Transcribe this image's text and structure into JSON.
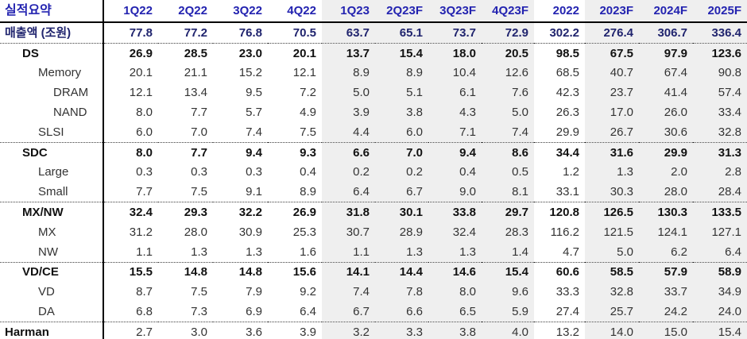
{
  "table": {
    "corner_label": "실적요약",
    "colors": {
      "header_text": "#2323b0",
      "revenue_text": "#20246e",
      "body_text": "#333333",
      "shade_bg": "#efefef",
      "line": "#000000"
    },
    "columns": [
      "1Q22",
      "2Q22",
      "3Q22",
      "4Q22",
      "1Q23",
      "2Q23F",
      "3Q23F",
      "4Q23F",
      "2022",
      "2023F",
      "2024F",
      "2025F"
    ],
    "shaded_column_indexes": [
      4,
      5,
      6,
      7,
      9,
      10,
      11
    ],
    "rows": [
      {
        "label": "매출액 (조원)",
        "indent": 0,
        "bold": true,
        "navy": true,
        "sep_after": true,
        "values": [
          "77.8",
          "77.2",
          "76.8",
          "70.5",
          "63.7",
          "65.1",
          "73.7",
          "72.9",
          "302.2",
          "276.4",
          "306.7",
          "336.4"
        ]
      },
      {
        "label": "DS",
        "indent": 1,
        "bold": true,
        "values": [
          "26.9",
          "28.5",
          "23.0",
          "20.1",
          "13.7",
          "15.4",
          "18.0",
          "20.5",
          "98.5",
          "67.5",
          "97.9",
          "123.6"
        ]
      },
      {
        "label": "Memory",
        "indent": 2,
        "values": [
          "20.1",
          "21.1",
          "15.2",
          "12.1",
          "8.9",
          "8.9",
          "10.4",
          "12.6",
          "68.5",
          "40.7",
          "67.4",
          "90.8"
        ]
      },
      {
        "label": "DRAM",
        "indent": 3,
        "values": [
          "12.1",
          "13.4",
          "9.5",
          "7.2",
          "5.0",
          "5.1",
          "6.1",
          "7.6",
          "42.3",
          "23.7",
          "41.4",
          "57.4"
        ]
      },
      {
        "label": "NAND",
        "indent": 3,
        "values": [
          "8.0",
          "7.7",
          "5.7",
          "4.9",
          "3.9",
          "3.8",
          "4.3",
          "5.0",
          "26.3",
          "17.0",
          "26.0",
          "33.4"
        ]
      },
      {
        "label": "SLSI",
        "indent": 2,
        "sep_after": true,
        "values": [
          "6.0",
          "7.0",
          "7.4",
          "7.5",
          "4.4",
          "6.0",
          "7.1",
          "7.4",
          "29.9",
          "26.7",
          "30.6",
          "32.8"
        ]
      },
      {
        "label": "SDC",
        "indent": 1,
        "bold": true,
        "values": [
          "8.0",
          "7.7",
          "9.4",
          "9.3",
          "6.6",
          "7.0",
          "9.4",
          "8.6",
          "34.4",
          "31.6",
          "29.9",
          "31.3"
        ]
      },
      {
        "label": "Large",
        "indent": 2,
        "values": [
          "0.3",
          "0.3",
          "0.3",
          "0.4",
          "0.2",
          "0.2",
          "0.4",
          "0.5",
          "1.2",
          "1.3",
          "2.0",
          "2.8"
        ]
      },
      {
        "label": "Small",
        "indent": 2,
        "sep_after": true,
        "values": [
          "7.7",
          "7.5",
          "9.1",
          "8.9",
          "6.4",
          "6.7",
          "9.0",
          "8.1",
          "33.1",
          "30.3",
          "28.0",
          "28.4"
        ]
      },
      {
        "label": "MX/NW",
        "indent": 1,
        "bold": true,
        "values": [
          "32.4",
          "29.3",
          "32.2",
          "26.9",
          "31.8",
          "30.1",
          "33.8",
          "29.7",
          "120.8",
          "126.5",
          "130.3",
          "133.5"
        ]
      },
      {
        "label": "MX",
        "indent": 2,
        "values": [
          "31.2",
          "28.0",
          "30.9",
          "25.3",
          "30.7",
          "28.9",
          "32.4",
          "28.3",
          "116.2",
          "121.5",
          "124.1",
          "127.1"
        ]
      },
      {
        "label": "NW",
        "indent": 2,
        "sep_after": true,
        "values": [
          "1.1",
          "1.3",
          "1.3",
          "1.6",
          "1.1",
          "1.3",
          "1.3",
          "1.4",
          "4.7",
          "5.0",
          "6.2",
          "6.4"
        ]
      },
      {
        "label": "VD/CE",
        "indent": 1,
        "bold": true,
        "values": [
          "15.5",
          "14.8",
          "14.8",
          "15.6",
          "14.1",
          "14.4",
          "14.6",
          "15.4",
          "60.6",
          "58.5",
          "57.9",
          "58.9"
        ]
      },
      {
        "label": "VD",
        "indent": 2,
        "values": [
          "8.7",
          "7.5",
          "7.9",
          "9.2",
          "7.4",
          "7.8",
          "8.0",
          "9.6",
          "33.3",
          "32.8",
          "33.7",
          "34.9"
        ]
      },
      {
        "label": "DA",
        "indent": 2,
        "sep_after": true,
        "values": [
          "6.8",
          "7.3",
          "6.9",
          "6.4",
          "6.7",
          "6.6",
          "6.5",
          "5.9",
          "27.4",
          "25.7",
          "24.2",
          "24.0"
        ]
      },
      {
        "label": "Harman",
        "indent": 0,
        "bold_label": true,
        "values": [
          "2.7",
          "3.0",
          "3.6",
          "3.9",
          "3.2",
          "3.3",
          "3.8",
          "4.0",
          "13.2",
          "14.0",
          "15.0",
          "15.4"
        ]
      }
    ]
  }
}
